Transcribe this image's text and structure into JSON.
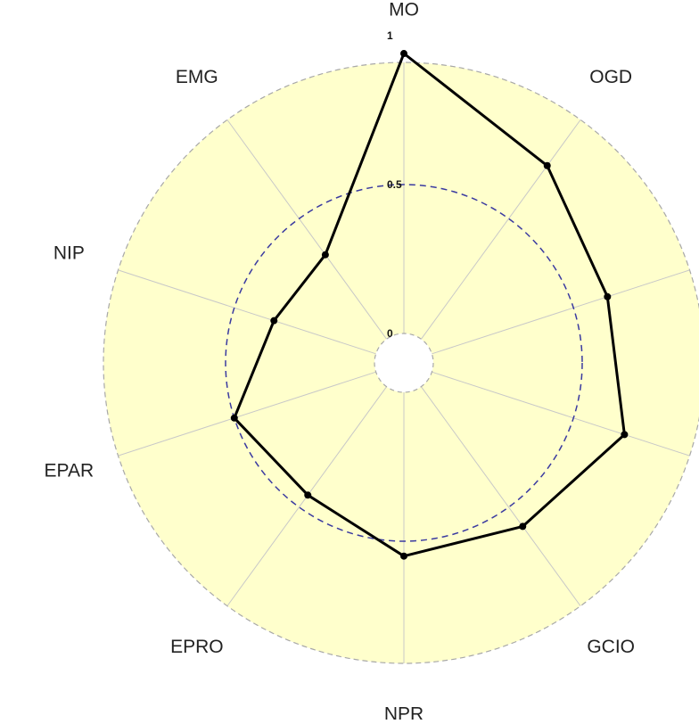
{
  "chart_data": {
    "type": "radar",
    "categories": [
      "MO",
      "OGD",
      "",
      "",
      "GCIO",
      "NPR",
      "EPRO",
      "EPAR",
      "NIP",
      "EMG"
    ],
    "series": [
      {
        "values": [
          0.94,
          0.72,
          0.62,
          0.68,
          0.58,
          0.55,
          0.45,
          0.5,
          0.36,
          0.35
        ]
      }
    ],
    "reference_circle": 0.5,
    "rlim": [
      0,
      1
    ],
    "ticks": [
      "0",
      "0.5",
      "1"
    ],
    "grid": true,
    "colors": {
      "background_fill": "#ffffcc",
      "series_line": "#000000",
      "reference_circle": "#3a3aa0",
      "grid_spokes": "#c8c8c8",
      "outer_ring": "#a8a8a8"
    }
  }
}
